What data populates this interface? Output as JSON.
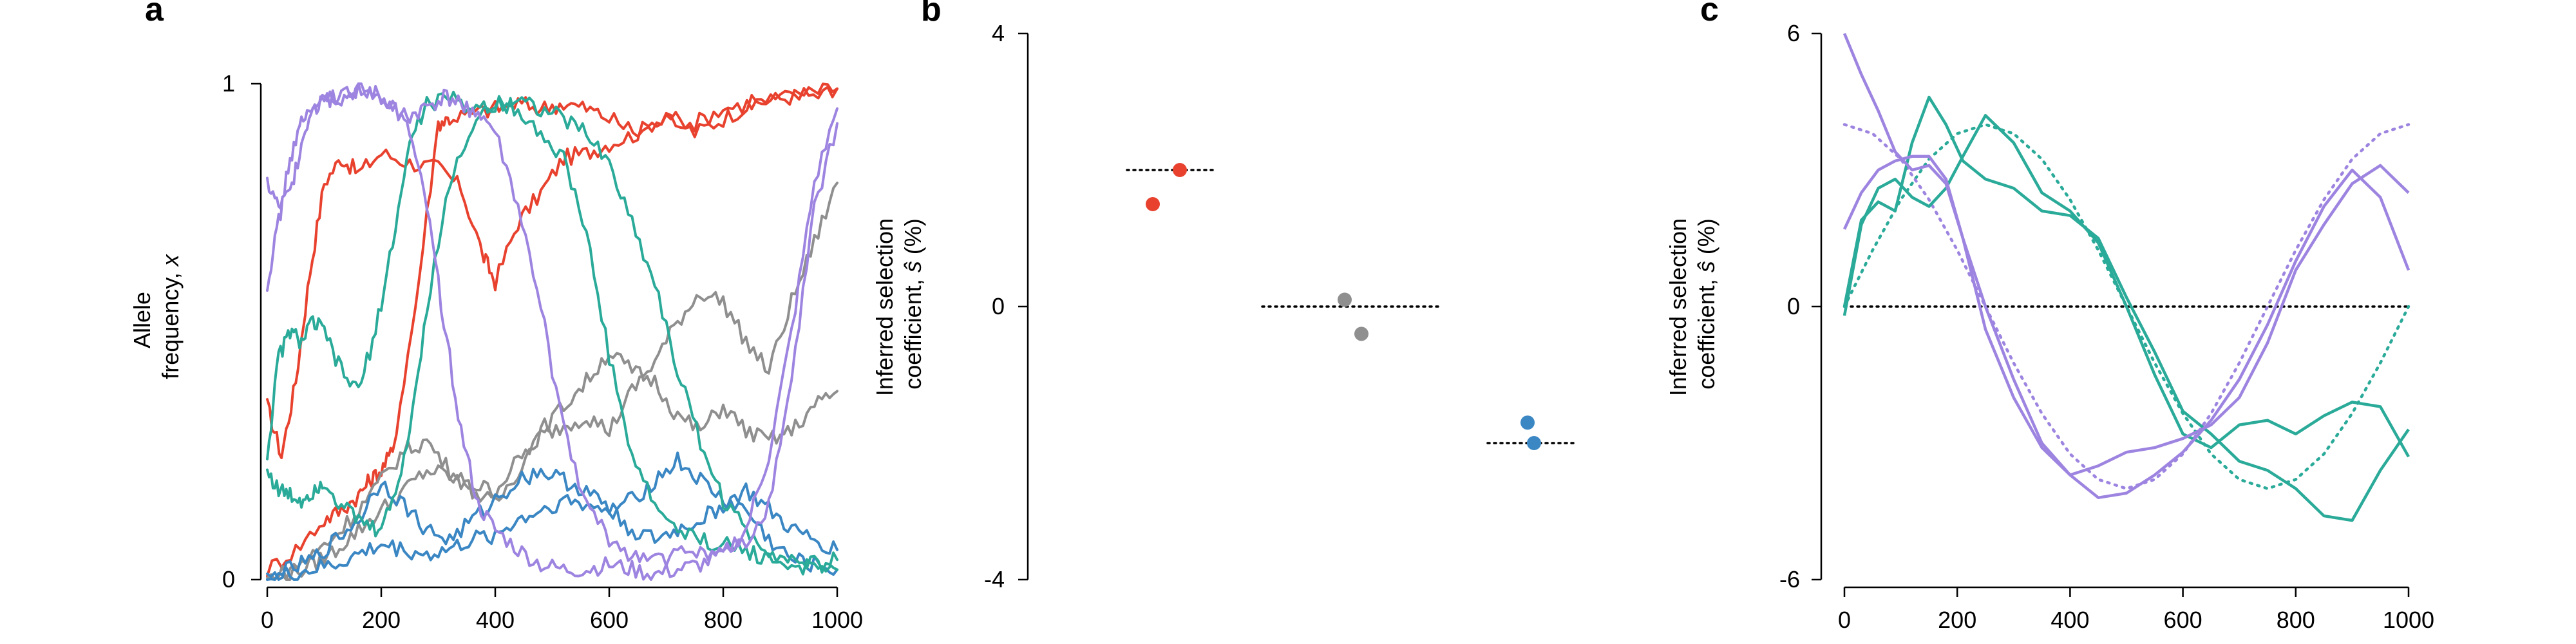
{
  "colors": {
    "beneficial": "#e8422f",
    "neutral": "#8f8f8f",
    "deleterious": "#3a87c4",
    "variable_a": "#2aaa99",
    "variable_b": "#9d84e0"
  },
  "panels": {
    "a": {
      "letter": "a",
      "ylabel_line1": "Allele",
      "ylabel_line2_prefix": "frequency, ",
      "ylabel_var": "x"
    },
    "b": {
      "letter": "b",
      "ylabel_line1": "Inferred selection",
      "ylabel_line2_prefix": "coefficient, ",
      "ylabel_var": "ŝ",
      "ylabel_suffix": " (%)"
    },
    "c": {
      "letter": "c",
      "ylabel_line1": "Inferred selection",
      "ylabel_line2_prefix": "coefficient, ",
      "ylabel_var": "ŝ",
      "ylabel_suffix": " (%)"
    }
  },
  "chart_data": [
    {
      "panel": "a",
      "type": "line",
      "xlabel": "",
      "ylabel": "Allele frequency, x",
      "xlim": [
        0,
        1000
      ],
      "ylim": [
        0,
        1
      ],
      "xticks": [
        0,
        200,
        400,
        600,
        800,
        1000
      ],
      "yticks": [
        0,
        1
      ],
      "ytick_labels": [
        "0",
        "1"
      ],
      "series": [
        {
          "group": "beneficial",
          "color_key": "beneficial",
          "x": [
            0,
            25,
            50,
            75,
            100,
            130,
            160,
            200,
            250,
            300,
            340,
            380,
            400,
            440,
            480,
            520,
            560,
            600,
            650,
            700,
            750,
            800,
            850,
            900,
            950,
            1000
          ],
          "values": [
            0.35,
            0.25,
            0.4,
            0.62,
            0.8,
            0.85,
            0.82,
            0.86,
            0.84,
            0.83,
            0.79,
            0.65,
            0.6,
            0.72,
            0.78,
            0.85,
            0.86,
            0.88,
            0.9,
            0.94,
            0.9,
            0.93,
            0.96,
            0.97,
            0.98,
            0.99
          ]
        },
        {
          "group": "beneficial",
          "color_key": "beneficial",
          "x": [
            0,
            50,
            100,
            130,
            160,
            180,
            200,
            220,
            260,
            300,
            320,
            360,
            400,
            440,
            480,
            520,
            560,
            600,
            650,
            700,
            750,
            800,
            850,
            900,
            950,
            1000
          ],
          "values": [
            0.02,
            0.06,
            0.12,
            0.14,
            0.17,
            0.2,
            0.22,
            0.26,
            0.55,
            0.92,
            0.93,
            0.94,
            0.95,
            0.96,
            0.95,
            0.96,
            0.95,
            0.93,
            0.9,
            0.93,
            0.92,
            0.95,
            0.96,
            0.97,
            0.98,
            0.99
          ]
        },
        {
          "group": "neutral",
          "color_key": "neutral",
          "x": [
            0,
            40,
            80,
            120,
            160,
            200,
            240,
            280,
            320,
            360,
            400,
            440,
            480,
            520,
            560,
            600,
            640,
            680,
            720,
            760,
            800,
            840,
            880,
            920,
            960,
            1000
          ],
          "values": [
            0.0,
            0.01,
            0.03,
            0.06,
            0.1,
            0.14,
            0.18,
            0.22,
            0.21,
            0.19,
            0.18,
            0.24,
            0.29,
            0.31,
            0.33,
            0.3,
            0.38,
            0.44,
            0.52,
            0.58,
            0.56,
            0.48,
            0.42,
            0.56,
            0.68,
            0.8
          ]
        },
        {
          "group": "neutral",
          "color_key": "neutral",
          "x": [
            0,
            40,
            80,
            120,
            160,
            200,
            240,
            280,
            320,
            360,
            400,
            440,
            480,
            520,
            560,
            600,
            640,
            680,
            720,
            760,
            800,
            840,
            880,
            920,
            960,
            1000
          ],
          "values": [
            0.0,
            0.02,
            0.05,
            0.09,
            0.14,
            0.2,
            0.26,
            0.28,
            0.22,
            0.18,
            0.15,
            0.22,
            0.3,
            0.35,
            0.4,
            0.46,
            0.42,
            0.4,
            0.33,
            0.3,
            0.35,
            0.3,
            0.28,
            0.3,
            0.35,
            0.38
          ]
        },
        {
          "group": "deleterious",
          "color_key": "deleterious",
          "x": [
            0,
            40,
            80,
            120,
            160,
            200,
            240,
            280,
            320,
            360,
            400,
            440,
            480,
            520,
            560,
            600,
            640,
            680,
            720,
            760,
            800,
            840,
            880,
            920,
            960,
            1000
          ],
          "values": [
            0.0,
            0.02,
            0.04,
            0.08,
            0.12,
            0.2,
            0.15,
            0.1,
            0.08,
            0.12,
            0.16,
            0.2,
            0.22,
            0.2,
            0.18,
            0.14,
            0.16,
            0.2,
            0.24,
            0.2,
            0.16,
            0.14,
            0.08,
            0.04,
            0.03,
            0.02
          ]
        },
        {
          "group": "deleterious",
          "color_key": "deleterious",
          "x": [
            0,
            40,
            80,
            120,
            160,
            200,
            240,
            280,
            320,
            360,
            400,
            440,
            480,
            520,
            560,
            600,
            640,
            680,
            720,
            760,
            800,
            840,
            880,
            920,
            960,
            1000
          ],
          "values": [
            0.0,
            0.01,
            0.02,
            0.03,
            0.05,
            0.07,
            0.06,
            0.05,
            0.06,
            0.08,
            0.09,
            0.12,
            0.14,
            0.16,
            0.15,
            0.14,
            0.1,
            0.08,
            0.1,
            0.12,
            0.15,
            0.18,
            0.14,
            0.1,
            0.08,
            0.06
          ]
        },
        {
          "group": "variable_a",
          "color_key": "variable_a",
          "x": [
            0,
            20,
            40,
            60,
            80,
            100,
            130,
            160,
            190,
            220,
            250,
            280,
            320,
            360,
            400,
            440,
            480,
            520,
            560,
            600,
            640,
            680,
            720,
            760,
            800,
            840,
            880,
            920,
            960,
            1000
          ],
          "values": [
            0.25,
            0.45,
            0.5,
            0.48,
            0.52,
            0.5,
            0.42,
            0.38,
            0.5,
            0.68,
            0.88,
            0.96,
            0.97,
            0.95,
            0.96,
            0.97,
            0.95,
            0.93,
            0.9,
            0.84,
            0.72,
            0.6,
            0.42,
            0.28,
            0.16,
            0.1,
            0.06,
            0.04,
            0.03,
            0.02
          ]
        },
        {
          "group": "variable_a",
          "color_key": "variable_a",
          "x": [
            0,
            20,
            40,
            60,
            80,
            100,
            130,
            160,
            190,
            220,
            250,
            280,
            320,
            360,
            400,
            440,
            480,
            520,
            560,
            600,
            640,
            680,
            720,
            760,
            800,
            840,
            880,
            920,
            960,
            1000
          ],
          "values": [
            0.22,
            0.18,
            0.17,
            0.16,
            0.18,
            0.2,
            0.15,
            0.12,
            0.1,
            0.15,
            0.3,
            0.55,
            0.8,
            0.92,
            0.96,
            0.95,
            0.9,
            0.85,
            0.7,
            0.45,
            0.25,
            0.15,
            0.1,
            0.08,
            0.07,
            0.06,
            0.04,
            0.03,
            0.02,
            0.04
          ]
        },
        {
          "group": "variable_b",
          "color_key": "variable_b",
          "x": [
            0,
            20,
            40,
            60,
            80,
            100,
            130,
            160,
            190,
            220,
            250,
            280,
            310,
            340,
            370,
            400,
            440,
            480,
            520,
            560,
            600,
            640,
            680,
            720,
            760,
            800,
            840,
            880,
            920,
            960,
            1000
          ],
          "values": [
            0.8,
            0.75,
            0.78,
            0.88,
            0.96,
            0.98,
            0.97,
            0.99,
            0.98,
            0.96,
            0.9,
            0.75,
            0.52,
            0.3,
            0.15,
            0.1,
            0.06,
            0.03,
            0.02,
            0.02,
            0.03,
            0.02,
            0.01,
            0.02,
            0.03,
            0.05,
            0.1,
            0.25,
            0.5,
            0.8,
            0.95
          ]
        },
        {
          "group": "variable_b",
          "color_key": "variable_b",
          "x": [
            0,
            20,
            40,
            60,
            80,
            100,
            130,
            160,
            190,
            220,
            250,
            280,
            310,
            340,
            370,
            400,
            440,
            480,
            520,
            560,
            600,
            640,
            680,
            720,
            760,
            800,
            840,
            880,
            920,
            960,
            1000
          ],
          "values": [
            0.6,
            0.72,
            0.85,
            0.92,
            0.95,
            0.96,
            0.98,
            0.99,
            0.97,
            0.95,
            0.93,
            0.95,
            0.97,
            0.96,
            0.94,
            0.9,
            0.75,
            0.55,
            0.3,
            0.15,
            0.08,
            0.05,
            0.04,
            0.05,
            0.06,
            0.05,
            0.07,
            0.15,
            0.4,
            0.75,
            0.92
          ]
        }
      ]
    },
    {
      "panel": "b",
      "type": "scatter",
      "xlabel": "",
      "ylabel": "Inferred selection coefficient, ŝ (%)",
      "ylim": [
        -4,
        4
      ],
      "yticks": [
        -4,
        0,
        4
      ],
      "groups": [
        {
          "name": "beneficial",
          "color_key": "beneficial",
          "true_value": 2.0,
          "inferred": [
            1.5,
            2.0
          ]
        },
        {
          "name": "neutral",
          "color_key": "neutral",
          "true_value": 0.0,
          "inferred": [
            0.1,
            -0.4
          ]
        },
        {
          "name": "deleterious",
          "color_key": "deleterious",
          "true_value": -2.0,
          "inferred": [
            -1.7,
            -2.0
          ]
        }
      ]
    },
    {
      "panel": "c",
      "type": "line",
      "xlabel": "",
      "ylabel": "Inferred selection coefficient, ŝ (%)",
      "xlim": [
        0,
        1000
      ],
      "ylim": [
        -6,
        6
      ],
      "xticks": [
        0,
        200,
        400,
        600,
        800,
        1000
      ],
      "yticks": [
        -6,
        0,
        6
      ],
      "zero_line": true,
      "true_series": [
        {
          "group": "variable_a",
          "color_key": "variable_a",
          "x": [
            0,
            50,
            100,
            150,
            200,
            250,
            300,
            350,
            400,
            450,
            500,
            550,
            600,
            650,
            700,
            750,
            800,
            850,
            900,
            950,
            1000
          ],
          "values": [
            0.0,
            1.24,
            2.35,
            3.24,
            3.8,
            4.0,
            3.8,
            3.24,
            2.35,
            1.24,
            0.0,
            -1.24,
            -2.35,
            -3.24,
            -3.8,
            -4.0,
            -3.8,
            -3.24,
            -2.35,
            -1.24,
            0.0
          ]
        },
        {
          "group": "variable_b",
          "color_key": "variable_b",
          "x": [
            0,
            50,
            100,
            150,
            200,
            250,
            300,
            350,
            400,
            450,
            500,
            550,
            600,
            650,
            700,
            750,
            800,
            850,
            900,
            950,
            1000
          ],
          "values": [
            4.0,
            3.8,
            3.24,
            2.35,
            1.24,
            0.0,
            -1.24,
            -2.35,
            -3.24,
            -3.8,
            -4.0,
            -3.8,
            -3.24,
            -2.35,
            -1.24,
            0.0,
            1.24,
            2.35,
            3.24,
            3.8,
            4.0
          ]
        }
      ],
      "series": [
        {
          "group": "variable_a",
          "color_key": "variable_a",
          "x": [
            0,
            30,
            60,
            90,
            120,
            150,
            180,
            210,
            250,
            300,
            350,
            400,
            450,
            500,
            550,
            600,
            650,
            700,
            750,
            800,
            850,
            900,
            950,
            1000
          ],
          "values": [
            -0.2,
            1.8,
            2.6,
            2.8,
            2.4,
            2.2,
            2.6,
            3.3,
            4.2,
            3.6,
            2.5,
            2.1,
            1.4,
            0.0,
            -1.5,
            -2.8,
            -3.1,
            -2.6,
            -2.5,
            -2.8,
            -2.4,
            -2.1,
            -2.2,
            -3.3
          ]
        },
        {
          "group": "variable_a",
          "color_key": "variable_a",
          "x": [
            0,
            30,
            60,
            90,
            120,
            150,
            180,
            210,
            250,
            300,
            350,
            400,
            450,
            500,
            550,
            600,
            650,
            700,
            750,
            800,
            850,
            900,
            950,
            1000
          ],
          "values": [
            0.0,
            1.9,
            2.3,
            2.1,
            3.6,
            4.6,
            4.0,
            3.2,
            2.8,
            2.6,
            2.1,
            2.0,
            1.5,
            0.2,
            -1.0,
            -2.3,
            -2.8,
            -3.4,
            -3.6,
            -4.0,
            -4.6,
            -4.7,
            -3.6,
            -2.7
          ]
        },
        {
          "group": "variable_b",
          "color_key": "variable_b",
          "x": [
            0,
            30,
            60,
            90,
            120,
            150,
            180,
            210,
            250,
            300,
            350,
            400,
            450,
            500,
            550,
            600,
            650,
            700,
            750,
            800,
            850,
            900,
            950,
            1000
          ],
          "values": [
            6.0,
            5.1,
            4.3,
            3.4,
            3.0,
            3.1,
            2.7,
            1.5,
            -0.5,
            -2.0,
            -3.1,
            -3.7,
            -3.5,
            -3.2,
            -3.1,
            -2.9,
            -2.6,
            -2.0,
            -0.8,
            0.8,
            1.8,
            2.7,
            3.1,
            2.5
          ]
        },
        {
          "group": "variable_b",
          "color_key": "variable_b",
          "x": [
            0,
            30,
            60,
            90,
            120,
            150,
            180,
            210,
            250,
            300,
            350,
            400,
            450,
            500,
            550,
            600,
            650,
            700,
            750,
            800,
            850,
            900,
            950,
            1000
          ],
          "values": [
            1.7,
            2.5,
            3.0,
            3.2,
            3.3,
            3.3,
            2.8,
            1.5,
            0.0,
            -1.6,
            -3.0,
            -3.7,
            -4.2,
            -4.1,
            -3.7,
            -3.2,
            -2.5,
            -1.6,
            -0.4,
            1.0,
            2.2,
            3.0,
            2.4,
            0.8
          ]
        }
      ]
    }
  ]
}
